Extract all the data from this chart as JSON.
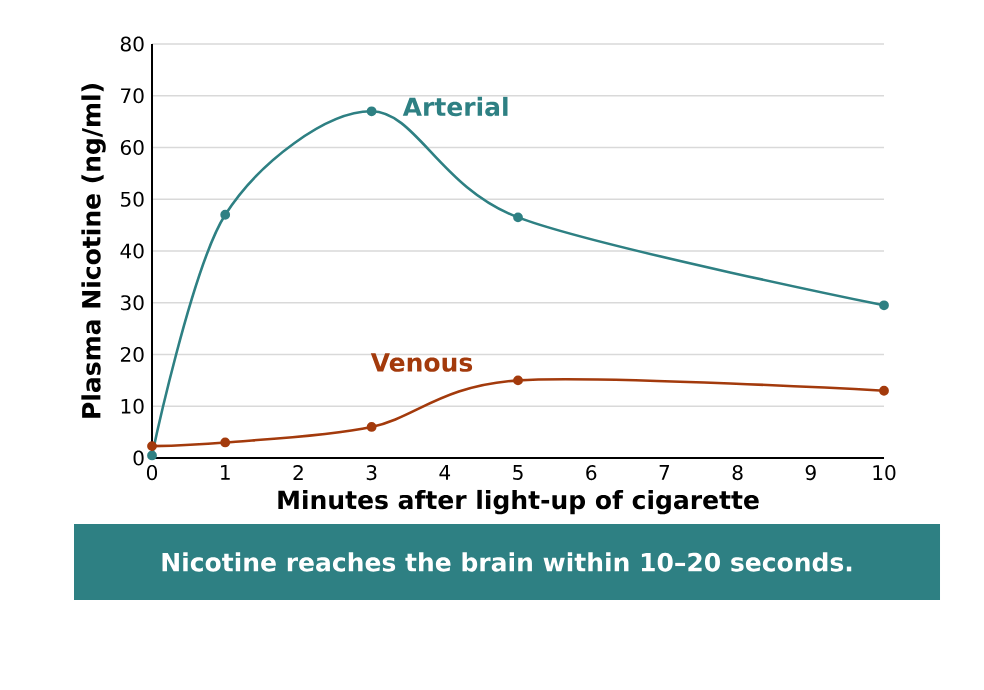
{
  "chart_data": {
    "type": "line",
    "xlabel": "Minutes after light-up of cigarette",
    "ylabel": "Plasma Nicotine (ng/ml)",
    "xlim": [
      0,
      10
    ],
    "xticks": [
      0,
      1,
      2,
      3,
      4,
      5,
      6,
      7,
      8,
      9,
      10
    ],
    "ylim": [
      0,
      80
    ],
    "yticks": [
      0,
      10,
      20,
      30,
      40,
      50,
      60,
      70,
      80
    ],
    "grid": "y",
    "legend": false,
    "marker": "circle",
    "line_style": "solid",
    "series": [
      {
        "name": "Arterial",
        "color": "#2e8083",
        "x": [
          0,
          1,
          3,
          5,
          10
        ],
        "values": [
          0.5,
          47,
          67,
          46.5,
          29.5
        ]
      },
      {
        "name": "Venous",
        "color": "#a33a0c",
        "x": [
          0,
          1,
          3,
          5,
          10
        ],
        "values": [
          2.3,
          3,
          6,
          15,
          13
        ]
      }
    ],
    "annotations": [
      "Nicotine reaches the brain within 10–20 seconds."
    ]
  }
}
